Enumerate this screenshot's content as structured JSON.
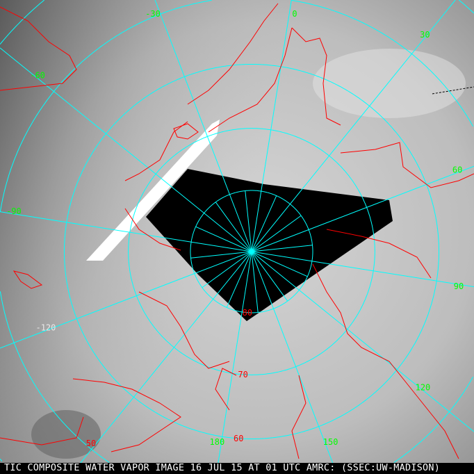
{
  "caption": "TIC COMPOSITE WATER VAPOR IMAGE 16 JUL 15 AT 01 UTC AMRC: (SSEC:UW-MADISON)",
  "colors": {
    "graticule": "#00ffff",
    "coastline": "#ff0000",
    "longitude_label": "#00ff00",
    "latitude_label": "#ff0000",
    "no_data": "#000000"
  },
  "longitude_labels": [
    {
      "lon": -60,
      "text": "-60"
    },
    {
      "lon": -30,
      "text": "-30"
    },
    {
      "lon": 0,
      "text": "0"
    },
    {
      "lon": 30,
      "text": "30"
    },
    {
      "lon": 60,
      "text": "60"
    },
    {
      "lon": 90,
      "text": "90"
    },
    {
      "lon": 120,
      "text": "120"
    },
    {
      "lon": 150,
      "text": "150"
    },
    {
      "lon": 180,
      "text": "180"
    },
    {
      "lon": -120,
      "text": "-120"
    },
    {
      "lon": -90,
      "text": "-90"
    }
  ],
  "latitude_labels": [
    {
      "lat": 80,
      "text": "80"
    },
    {
      "lat": 70,
      "text": "70"
    },
    {
      "lat": 60,
      "text": "60"
    },
    {
      "lat": 50,
      "text": "50"
    }
  ]
}
